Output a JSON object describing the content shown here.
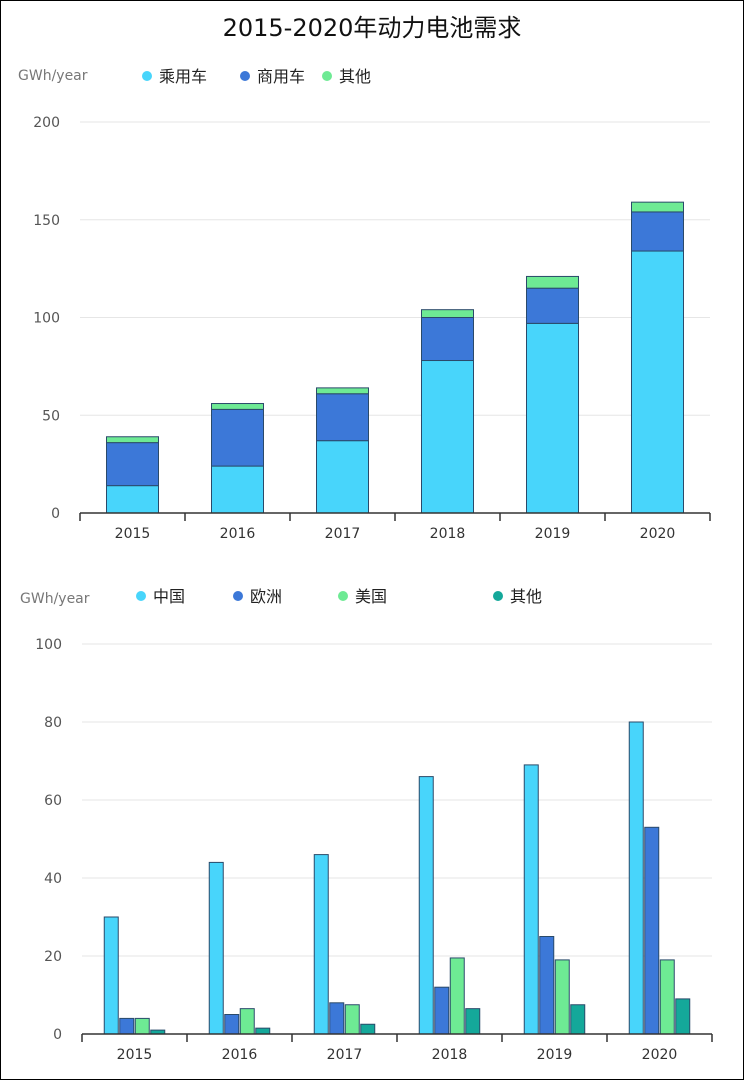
{
  "title": "2015-2020年动力电池需求",
  "chart_data": [
    {
      "type": "bar",
      "stacked": true,
      "ylabel": "GWh/year",
      "ylim": [
        0,
        200
      ],
      "yticks": [
        0,
        50,
        100,
        150,
        200
      ],
      "categories": [
        "2015",
        "2016",
        "2017",
        "2018",
        "2019",
        "2020"
      ],
      "legend_placement": "top",
      "series": [
        {
          "name": "乘用车",
          "color": "#48D5FB",
          "values": [
            14,
            24,
            37,
            78,
            97,
            134
          ]
        },
        {
          "name": "商用车",
          "color": "#3C78D8",
          "values": [
            22,
            29,
            24,
            22,
            18,
            20
          ]
        },
        {
          "name": "其他",
          "color": "#6EEA94",
          "values": [
            3,
            3,
            3,
            4,
            6,
            5
          ]
        }
      ]
    },
    {
      "type": "bar",
      "stacked": false,
      "ylabel": "GWh/year",
      "ylim": [
        0,
        100
      ],
      "yticks": [
        0,
        20,
        40,
        60,
        80,
        100
      ],
      "categories": [
        "2015",
        "2016",
        "2017",
        "2018",
        "2019",
        "2020"
      ],
      "legend_placement": "top",
      "series": [
        {
          "name": "中国",
          "color": "#48D5FB",
          "values": [
            30,
            44,
            46,
            66,
            69,
            80
          ]
        },
        {
          "name": "欧洲",
          "color": "#3C78D8",
          "values": [
            4,
            5,
            8,
            12,
            25,
            53
          ]
        },
        {
          "name": "美国",
          "color": "#6EEA94",
          "values": [
            4,
            6.5,
            7.5,
            19.5,
            19,
            19
          ]
        },
        {
          "name": "其他",
          "color": "#14A89A",
          "values": [
            1,
            1.5,
            2.5,
            6.5,
            7.5,
            9
          ]
        }
      ]
    }
  ]
}
